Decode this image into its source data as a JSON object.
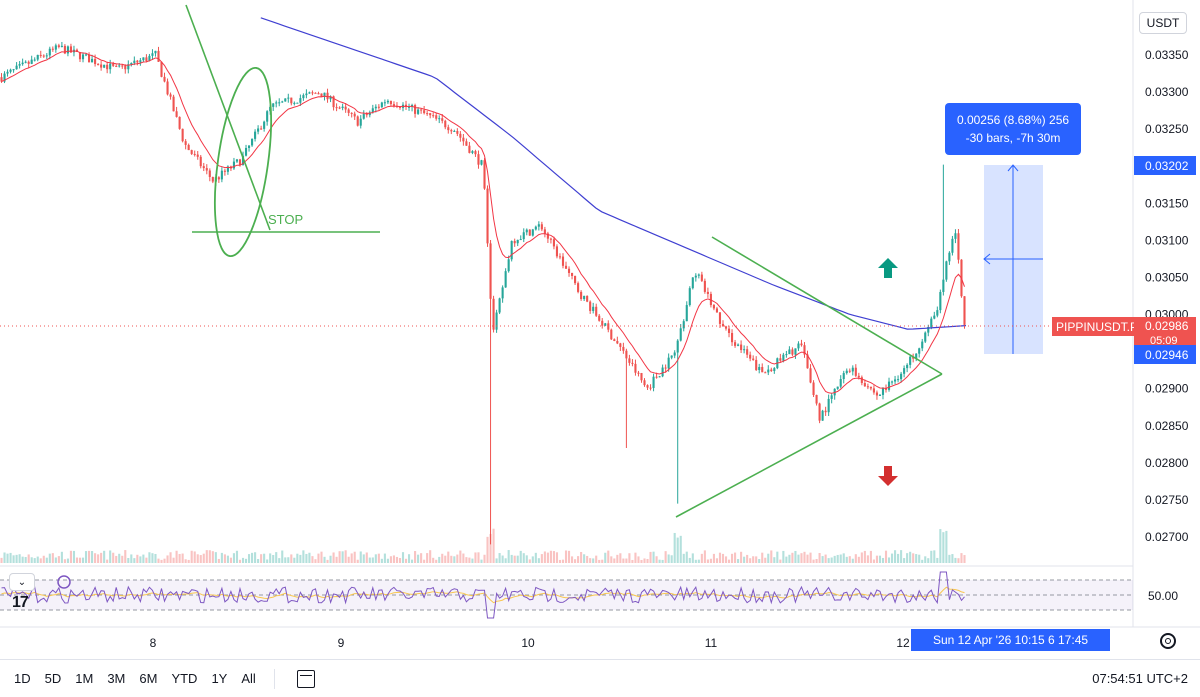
{
  "currency_button": "USDT",
  "symbol_label": "PIPPINUSDT.P",
  "current_price": "0.02986",
  "countdown": "05:09",
  "measure_high_price": "0.03202",
  "measure_low_price": "0.02946",
  "measure_line1": "0.00256 (8.68%) 256",
  "measure_line2": "-30 bars, -7h 30m",
  "annotation_stop": "STOP",
  "rsi_level_label": "50.00",
  "date_pill": "Sun 12 Apr '26   10:15   6   17:45",
  "clock": "07:54:51 UTC+2",
  "ranges": [
    "1D",
    "5D",
    "1M",
    "3M",
    "6M",
    "YTD",
    "1Y",
    "All"
  ],
  "colors": {
    "up": "#26a69a",
    "down": "#ef5350",
    "ma_fast": "#f23645",
    "ma_slow": "#3f3fd1",
    "annotation": "#4caf50",
    "measure": "#2962ff",
    "rsi": "#7e57c2",
    "rsi_ma": "#f9c74f"
  },
  "chart_data": {
    "type": "candlestick",
    "y_axis_ticks": [
      "0.03350",
      "0.03300",
      "0.03250",
      "0.03150",
      "0.03100",
      "0.03050",
      "0.03000",
      "0.02900",
      "0.02850",
      "0.02800",
      "0.02750",
      "0.02700"
    ],
    "x_axis_ticks": [
      "8",
      "9",
      "10",
      "11",
      "12"
    ],
    "ylim": [
      0.0267,
      0.034
    ],
    "close_anchors": [
      [
        0.0,
        0.0332
      ],
      [
        0.06,
        0.0336
      ],
      [
        0.12,
        0.0333
      ],
      [
        0.16,
        0.0335
      ],
      [
        0.19,
        0.0323
      ],
      [
        0.22,
        0.0318
      ],
      [
        0.25,
        0.0321
      ],
      [
        0.28,
        0.0328
      ],
      [
        0.33,
        0.033
      ],
      [
        0.37,
        0.0326
      ],
      [
        0.4,
        0.0329
      ],
      [
        0.44,
        0.0327
      ],
      [
        0.47,
        0.0325
      ],
      [
        0.5,
        0.032
      ],
      [
        0.51,
        0.0297
      ],
      [
        0.53,
        0.031
      ],
      [
        0.56,
        0.0312
      ],
      [
        0.6,
        0.0303
      ],
      [
        0.64,
        0.0296
      ],
      [
        0.67,
        0.029
      ],
      [
        0.7,
        0.0295
      ],
      [
        0.72,
        0.0306
      ],
      [
        0.75,
        0.0298
      ],
      [
        0.79,
        0.0292
      ],
      [
        0.83,
        0.0296
      ],
      [
        0.85,
        0.0286
      ],
      [
        0.88,
        0.0293
      ],
      [
        0.91,
        0.0289
      ],
      [
        0.94,
        0.0293
      ],
      [
        0.97,
        0.03
      ],
      [
        0.99,
        0.0312
      ],
      [
        1.0,
        0.02986
      ]
    ],
    "slow_ma_anchors": [
      [
        0.27,
        0.034
      ],
      [
        0.36,
        0.0336
      ],
      [
        0.45,
        0.0332
      ],
      [
        0.53,
        0.0324
      ],
      [
        0.62,
        0.0314
      ],
      [
        0.71,
        0.0309
      ],
      [
        0.8,
        0.0304
      ],
      [
        0.88,
        0.03
      ],
      [
        0.94,
        0.0298
      ],
      [
        1.0,
        0.02985
      ]
    ]
  }
}
